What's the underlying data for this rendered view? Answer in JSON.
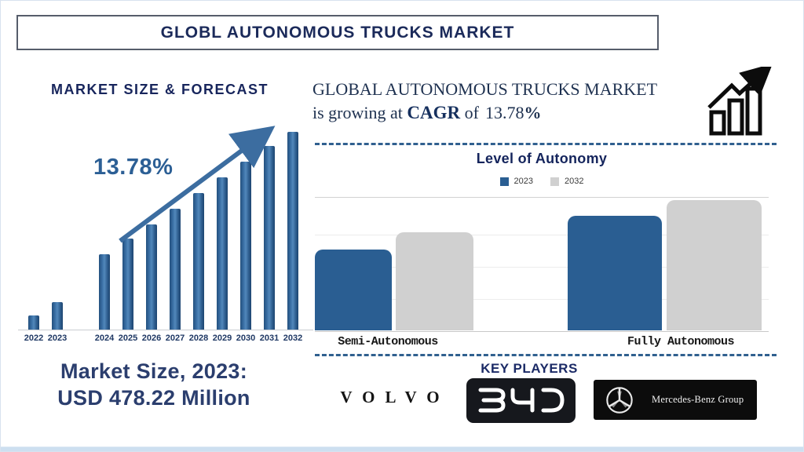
{
  "banner": {
    "title": "GLOBL AUTONOMOUS TRUCKS MARKET"
  },
  "market_forecast": {
    "heading": "MARKET SIZE & FORECAST",
    "cagr_annotation": "13.78%",
    "market_size_caption_line1": "Market Size, 2023:",
    "market_size_caption_line2": "USD 478.22 Million"
  },
  "growth_statement": {
    "line1": "GLOBAL AUTONOMOUS TRUCKS MARKET",
    "line2_prefix": "is growing at ",
    "cagr_word": "CAGR",
    "of_word": " of",
    "cagr_value": "13.78",
    "percent_sign": "%"
  },
  "autonomy_section": {
    "title": "Level of Autonomy",
    "legend": [
      {
        "label": "2023",
        "color": "#2a5e92"
      },
      {
        "label": "2032",
        "color": "#d0d0d0"
      }
    ],
    "categories": [
      "Semi-Autonomous",
      "Fully Autonomous"
    ]
  },
  "key_players": {
    "heading": "KEY PLAYERS",
    "volvo_label": "VOLVO",
    "byd_name": "BYD",
    "mercedes_label": "Mercedes-Benz Group"
  },
  "chart_data": [
    {
      "type": "bar",
      "title": "MARKET SIZE & FORECAST",
      "categories": [
        "2022",
        "2023",
        "2024",
        "2025",
        "2026",
        "2027",
        "2028",
        "2029",
        "2030",
        "2031",
        "2032"
      ],
      "values": [
        7,
        14,
        38,
        46,
        53,
        61,
        69,
        77,
        85,
        93,
        100
      ],
      "value_unit": "percent of tallest bar (no value axis shown)",
      "known_point": {
        "category": "2023",
        "value": 478.22,
        "unit": "USD Million"
      },
      "annotation": "13.78% CAGR trend arrow rising over 2025-2031 bars",
      "xlabel": "",
      "ylabel": "",
      "gridlines": false,
      "bar_color": "#2f639b"
    },
    {
      "type": "bar",
      "title": "Level of Autonomy",
      "categories": [
        "Semi-Autonomous",
        "Fully Autonomous"
      ],
      "series": [
        {
          "name": "2023",
          "color": "#2a5e92",
          "values": [
            62,
            88
          ]
        },
        {
          "name": "2032",
          "color": "#d0d0d0",
          "values": [
            75,
            100
          ]
        }
      ],
      "value_unit": "percent of tallest bar (no value axis shown)",
      "legend_position": "top",
      "gridlines": true,
      "xlabel": "",
      "ylabel": ""
    }
  ],
  "colors": {
    "navy_text": "#1b2a5a",
    "steel_blue": "#2a5e92",
    "bar_gray": "#d0d0d0",
    "arrow_blue": "#3c6da0",
    "cagr_text_blue": "#2c5f95",
    "dashed_line": "#30608f",
    "footer_strip": "#cddff0"
  }
}
